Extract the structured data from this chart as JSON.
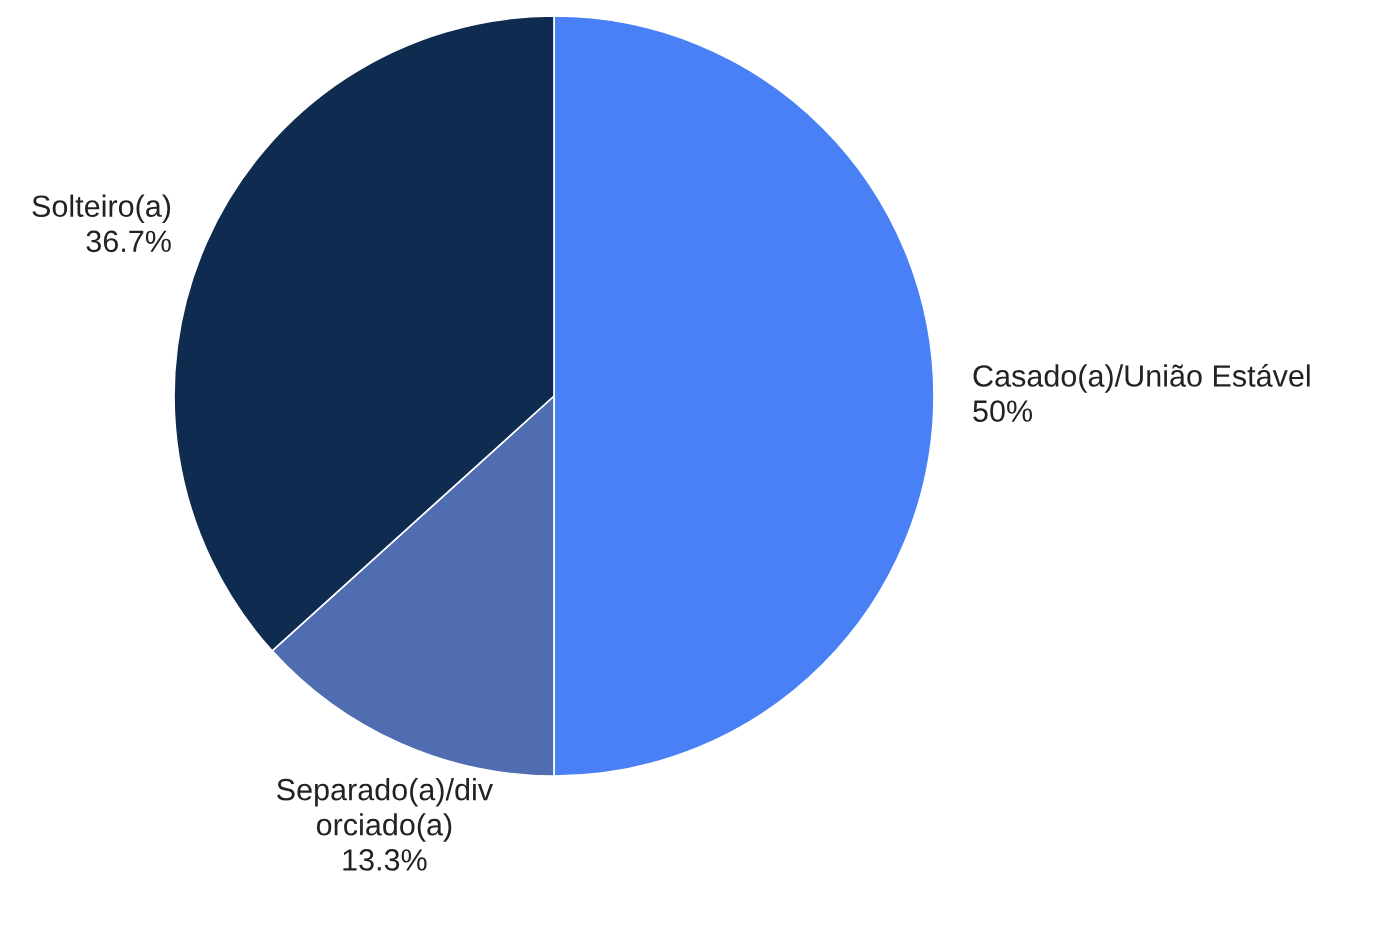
{
  "chart_data": {
    "type": "pie",
    "categories": [
      "Casado(a)/União Estável",
      "Separado(a)/div\norciado(a)",
      "Solteiro(a)"
    ],
    "values": [
      50,
      13.3,
      36.7
    ],
    "colors": [
      "#4a80f5",
      "#4f6db0",
      "#0f2b4f"
    ],
    "value_labels": [
      "50%",
      "13.3%",
      "36.7%"
    ],
    "legend": false
  }
}
